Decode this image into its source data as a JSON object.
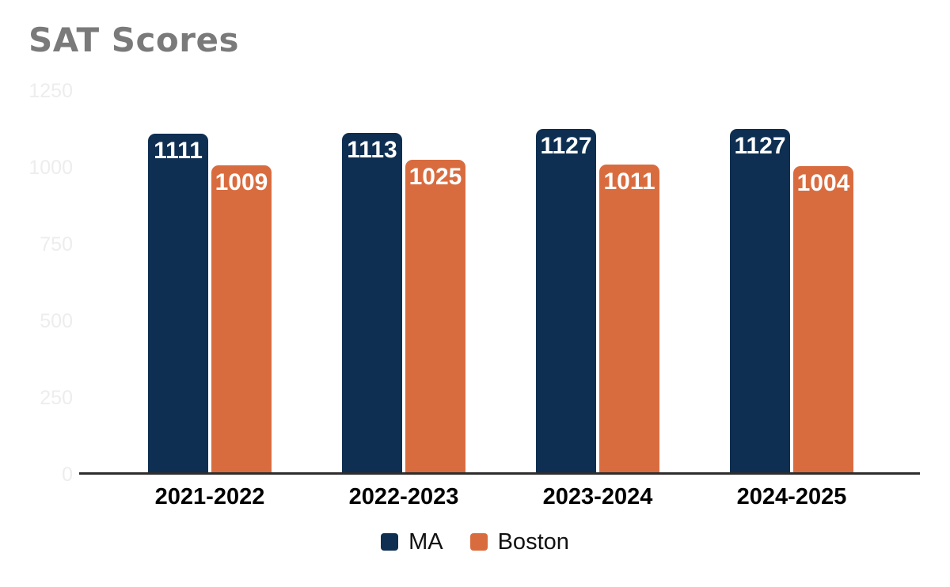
{
  "title": "SAT Scores",
  "colors": {
    "ma": "#0e2f52",
    "boston": "#d96c3f",
    "title_text": "#7a7a7a",
    "axis_line": "#2d2d2d",
    "y_tick_label": "#ededed",
    "value_label": "#ffffff",
    "category_label": "#000000",
    "background": "#ffffff"
  },
  "chart_data": {
    "type": "bar",
    "title": "SAT Scores",
    "categories": [
      "2021-2022",
      "2022-2023",
      "2023-2024",
      "2024-2025"
    ],
    "series": [
      {
        "name": "MA",
        "color": "#0e2f52",
        "values": [
          1111,
          1113,
          1127,
          1127
        ]
      },
      {
        "name": "Boston",
        "color": "#d96c3f",
        "values": [
          1009,
          1025,
          1011,
          1004
        ]
      }
    ],
    "ylim": [
      0,
      1250
    ],
    "yticks": [
      0,
      250,
      500,
      750,
      1000,
      1250
    ],
    "xlabel": "",
    "ylabel": "",
    "grid": false,
    "legend_position": "bottom",
    "value_labels": "inside-top"
  },
  "legend": {
    "items": [
      {
        "label": "MA",
        "color": "#0e2f52"
      },
      {
        "label": "Boston",
        "color": "#d96c3f"
      }
    ]
  }
}
